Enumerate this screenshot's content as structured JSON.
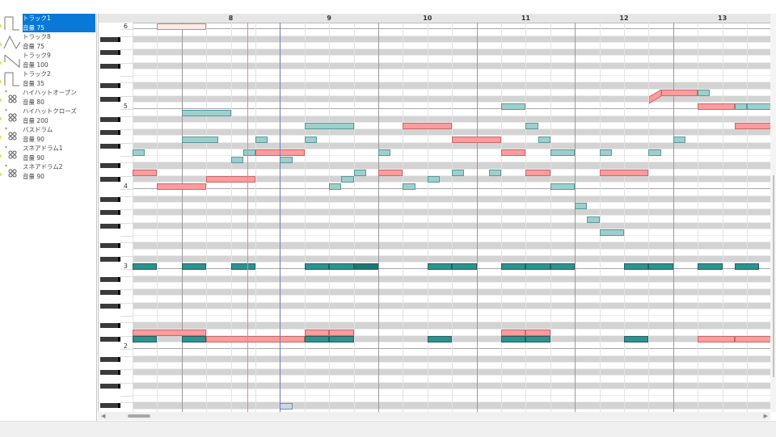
{
  "tracks": [
    {
      "name": "トラック1",
      "volume": "音量 75",
      "icon": "square-wave-icon",
      "selected": true
    },
    {
      "name": "トラック8",
      "volume": "音量 75",
      "icon": "triangle-wave-icon"
    },
    {
      "name": "トラック9",
      "volume": "音量 100",
      "icon": "sawtooth-wave-icon"
    },
    {
      "name": "トラック2",
      "volume": "音量 35",
      "icon": "square-wave-icon"
    },
    {
      "name": "ハイハットオープン",
      "volume": "音量 80",
      "icon": "drum-icon"
    },
    {
      "name": "ハイハットクローズ",
      "volume": "音量 200",
      "icon": "drum-icon"
    },
    {
      "name": "バスドラム",
      "volume": "音量 90",
      "icon": "drum-icon"
    },
    {
      "name": "スネアドラム1",
      "volume": "音量 90",
      "icon": "drum-icon"
    },
    {
      "name": "スネアドラム2",
      "volume": "音量 90",
      "icon": "drum-icon"
    }
  ],
  "measures": [
    "8",
    "9",
    "10",
    "11",
    "12",
    "13"
  ],
  "octaves": [
    "6",
    "5",
    "4",
    "3",
    "2"
  ],
  "playhead_beat": 32,
  "marker_beat": 30.67,
  "colors": {
    "pink": "#ff9b9b",
    "pink_border": "#c46a6a",
    "teal": "#9ccfcd",
    "teal_border": "#5b9896",
    "dark": "#2f918f",
    "dark_border": "#1c6563",
    "darker": "#1d7674",
    "faint": "#fde9e9",
    "faint_border": "#b88f8f",
    "outline": "#cdd7e5",
    "outline_border": "#7d8ca0",
    "playhead": "#6f78b8",
    "marker": "#d88c92"
  },
  "notes": [
    {
      "p": 84,
      "s": 27,
      "l": 2,
      "c": "faint"
    },
    {
      "p": 74,
      "s": 47.5,
      "l": 1.5,
      "c": "pink",
      "bend": true
    },
    {
      "p": 74,
      "s": 49,
      "l": 0.5,
      "c": "teal"
    },
    {
      "p": 72,
      "s": 41,
      "l": 1,
      "c": "teal"
    },
    {
      "p": 72,
      "s": 49,
      "l": 1.5,
      "c": "pink"
    },
    {
      "p": 72,
      "s": 50.5,
      "l": 0.5,
      "c": "teal"
    },
    {
      "p": 72,
      "s": 51,
      "l": 1,
      "c": "teal"
    },
    {
      "p": 71,
      "s": 28,
      "l": 2,
      "c": "teal"
    },
    {
      "p": 69,
      "s": 33,
      "l": 2,
      "c": "teal"
    },
    {
      "p": 69,
      "s": 37,
      "l": 2,
      "c": "pink"
    },
    {
      "p": 69,
      "s": 42,
      "l": 0.5,
      "c": "teal"
    },
    {
      "p": 69,
      "s": 50.5,
      "l": 1.5,
      "c": "pink"
    },
    {
      "p": 67,
      "s": 28,
      "l": 1.5,
      "c": "teal"
    },
    {
      "p": 67,
      "s": 31,
      "l": 0.5,
      "c": "teal"
    },
    {
      "p": 67,
      "s": 33,
      "l": 0.5,
      "c": "teal"
    },
    {
      "p": 67,
      "s": 39,
      "l": 2,
      "c": "pink"
    },
    {
      "p": 67,
      "s": 42.5,
      "l": 0.5,
      "c": "teal"
    },
    {
      "p": 67,
      "s": 48,
      "l": 0.5,
      "c": "teal"
    },
    {
      "p": 65,
      "s": 26,
      "l": 0.5,
      "c": "teal"
    },
    {
      "p": 65,
      "s": 30.5,
      "l": 0.5,
      "c": "teal"
    },
    {
      "p": 65,
      "s": 31,
      "l": 2,
      "c": "pink"
    },
    {
      "p": 65,
      "s": 36,
      "l": 0.5,
      "c": "teal"
    },
    {
      "p": 65,
      "s": 41,
      "l": 1,
      "c": "pink"
    },
    {
      "p": 65,
      "s": 43,
      "l": 1,
      "c": "teal"
    },
    {
      "p": 65,
      "s": 45,
      "l": 0.5,
      "c": "teal"
    },
    {
      "p": 65,
      "s": 47,
      "l": 0.5,
      "c": "teal"
    },
    {
      "p": 64,
      "s": 30,
      "l": 0.5,
      "c": "teal"
    },
    {
      "p": 64,
      "s": 32,
      "l": 0.5,
      "c": "teal"
    },
    {
      "p": 62,
      "s": 26,
      "l": 1,
      "c": "pink"
    },
    {
      "p": 62,
      "s": 35,
      "l": 0.5,
      "c": "teal"
    },
    {
      "p": 62,
      "s": 36,
      "l": 1,
      "c": "pink"
    },
    {
      "p": 62,
      "s": 39,
      "l": 0.5,
      "c": "teal"
    },
    {
      "p": 62,
      "s": 40.5,
      "l": 0.5,
      "c": "teal"
    },
    {
      "p": 62,
      "s": 42,
      "l": 1,
      "c": "pink"
    },
    {
      "p": 62,
      "s": 45,
      "l": 2,
      "c": "pink"
    },
    {
      "p": 61,
      "s": 29,
      "l": 2,
      "c": "pink"
    },
    {
      "p": 61,
      "s": 34.5,
      "l": 0.5,
      "c": "teal"
    },
    {
      "p": 61,
      "s": 38,
      "l": 0.5,
      "c": "teal"
    },
    {
      "p": 60,
      "s": 27,
      "l": 2,
      "c": "pink"
    },
    {
      "p": 60,
      "s": 34,
      "l": 0.5,
      "c": "teal"
    },
    {
      "p": 60,
      "s": 37,
      "l": 0.5,
      "c": "teal"
    },
    {
      "p": 60,
      "s": 43,
      "l": 1,
      "c": "teal"
    },
    {
      "p": 57,
      "s": 44,
      "l": 0.5,
      "c": "teal"
    },
    {
      "p": 55,
      "s": 44.5,
      "l": 0.5,
      "c": "teal"
    },
    {
      "p": 53,
      "s": 45,
      "l": 1,
      "c": "teal"
    },
    {
      "p": 48,
      "s": 26,
      "l": 1,
      "c": "dark"
    },
    {
      "p": 48,
      "s": 28,
      "l": 1,
      "c": "dark"
    },
    {
      "p": 48,
      "s": 30,
      "l": 1,
      "c": "dark"
    },
    {
      "p": 48,
      "s": 33,
      "l": 1,
      "c": "dark"
    },
    {
      "p": 48,
      "s": 34,
      "l": 1,
      "c": "dark"
    },
    {
      "p": 48,
      "s": 35,
      "l": 1,
      "c": "darker"
    },
    {
      "p": 48,
      "s": 38,
      "l": 1,
      "c": "dark"
    },
    {
      "p": 48,
      "s": 39,
      "l": 1,
      "c": "dark"
    },
    {
      "p": 48,
      "s": 41,
      "l": 1,
      "c": "dark"
    },
    {
      "p": 48,
      "s": 42,
      "l": 1,
      "c": "dark"
    },
    {
      "p": 48,
      "s": 43,
      "l": 1,
      "c": "dark"
    },
    {
      "p": 48,
      "s": 46,
      "l": 1,
      "c": "dark"
    },
    {
      "p": 48,
      "s": 47,
      "l": 1,
      "c": "dark"
    },
    {
      "p": 48,
      "s": 49,
      "l": 1,
      "c": "dark"
    },
    {
      "p": 48,
      "s": 50.5,
      "l": 1,
      "c": "dark"
    },
    {
      "p": 38,
      "s": 26,
      "l": 3,
      "c": "pink"
    },
    {
      "p": 38,
      "s": 33,
      "l": 1,
      "c": "pink"
    },
    {
      "p": 38,
      "s": 34,
      "l": 1,
      "c": "pink"
    },
    {
      "p": 38,
      "s": 41,
      "l": 1,
      "c": "pink"
    },
    {
      "p": 38,
      "s": 42,
      "l": 1,
      "c": "pink"
    },
    {
      "p": 37,
      "s": 26,
      "l": 1,
      "c": "dark"
    },
    {
      "p": 37,
      "s": 28,
      "l": 1,
      "c": "dark"
    },
    {
      "p": 37,
      "s": 29,
      "l": 4,
      "c": "pink"
    },
    {
      "p": 37,
      "s": 33,
      "l": 1,
      "c": "dark"
    },
    {
      "p": 37,
      "s": 34,
      "l": 1,
      "c": "dark"
    },
    {
      "p": 37,
      "s": 38,
      "l": 1,
      "c": "dark"
    },
    {
      "p": 37,
      "s": 41,
      "l": 1,
      "c": "dark"
    },
    {
      "p": 37,
      "s": 42,
      "l": 1,
      "c": "dark"
    },
    {
      "p": 37,
      "s": 46,
      "l": 1,
      "c": "dark"
    },
    {
      "p": 37,
      "s": 49,
      "l": 1.5,
      "c": "pink"
    },
    {
      "p": 37,
      "s": 50.5,
      "l": 1.5,
      "c": "pink"
    },
    {
      "p": 27,
      "s": 32,
      "l": 0.5,
      "c": "outline"
    }
  ]
}
